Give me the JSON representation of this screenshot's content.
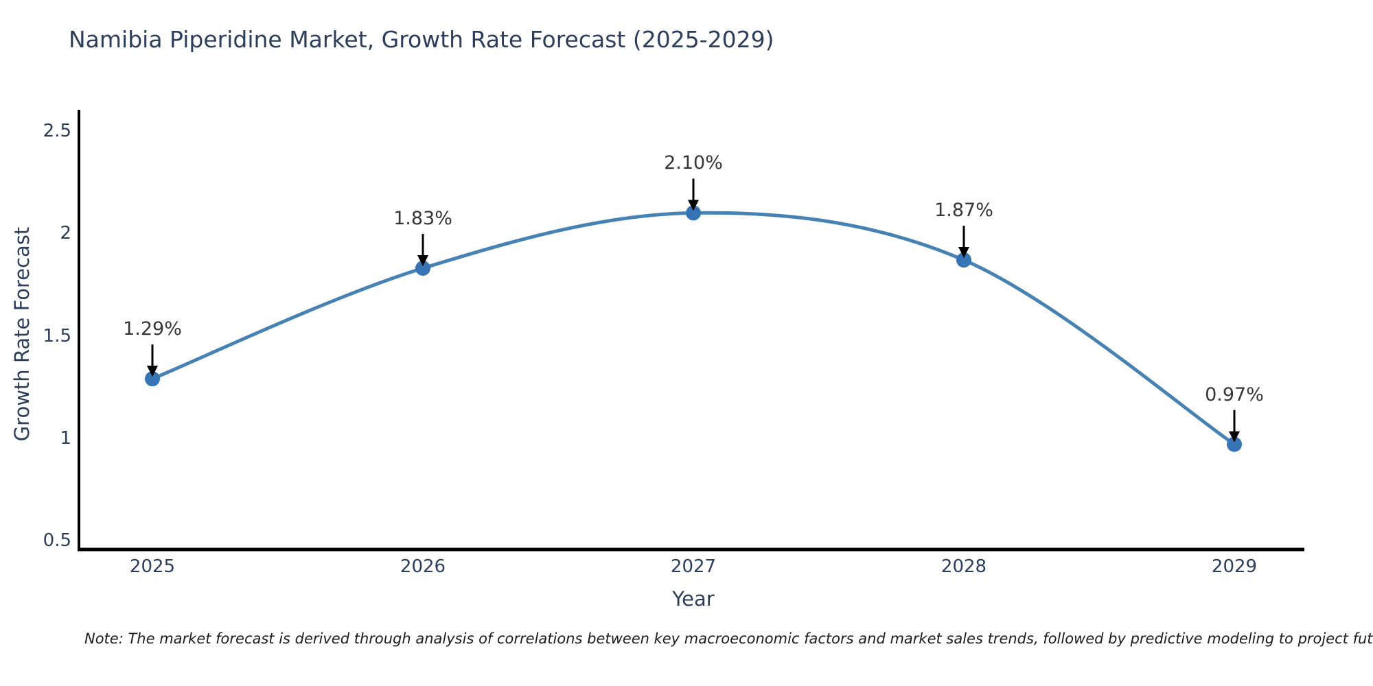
{
  "title": "Namibia Piperidine Market, Growth Rate Forecast (2025-2029)",
  "note": "Note: The market forecast is derived through analysis of correlations between key macroeconomic factors and market sales trends, followed by predictive modeling to project future sales",
  "chart_data": {
    "type": "line",
    "title": "Namibia Piperidine Market, Growth Rate Forecast (2025-2029)",
    "categories": [
      "2025",
      "2026",
      "2027",
      "2028",
      "2029"
    ],
    "values": [
      1.29,
      1.83,
      2.1,
      1.87,
      0.97
    ],
    "point_labels": [
      "1.29%",
      "1.83%",
      "2.10%",
      "1.87%",
      "0.97%"
    ],
    "xlabel": "Year",
    "ylabel": "Growth Rate Forecast",
    "ylim": [
      0.5,
      2.5
    ],
    "yticks": [
      "0.5",
      "1",
      "1.5",
      "2",
      "2.5"
    ],
    "grid": false,
    "legend": "none",
    "marker_style": "circle",
    "annotation_arrow": "down",
    "colors": {
      "line": "#4682b4",
      "marker": "#3674b5",
      "axis": "#000000",
      "axis_text": "#2b3e5c",
      "annotation_text": "#363636",
      "background": "#ffffff"
    }
  }
}
